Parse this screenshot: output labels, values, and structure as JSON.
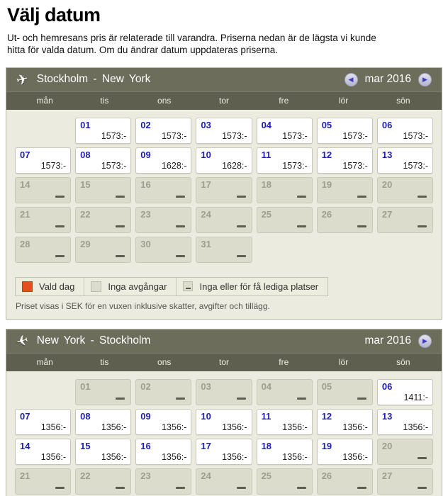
{
  "page": {
    "title": "Välj datum",
    "intro": "Ut- och hemresans pris är relaterade till varandra. Priserna nedan är de lägsta vi kunde hitta för valda datum. Om du ändrar datum uppdateras priserna."
  },
  "colors": {
    "header_bg": "#6d6d5c",
    "weekday_bg": "#5f5f50",
    "body_bg": "#ebebe0",
    "unavailable_bg": "#dcdccd",
    "available_bg": "#ffffff",
    "day_blue": "#1e1eb4",
    "selected_orange": "#e2501e",
    "arrow_blue": "#3d3dbb"
  },
  "icons": {
    "outbound_plane": "✈",
    "return_plane": "✈",
    "prev_arrow": "◀",
    "next_arrow": "▶"
  },
  "currency_note": "SEK",
  "weekday_headers": [
    "mån",
    "tis",
    "ons",
    "tor",
    "fre",
    "lör",
    "sön"
  ],
  "calendars": [
    {
      "id": "outbound",
      "route": "Stockholm - New York",
      "month_label": "mar 2016",
      "has_prev": true,
      "has_next": true,
      "weeks": [
        [
          null,
          {
            "day": "01",
            "state": "available",
            "price": "1573:-"
          },
          {
            "day": "02",
            "state": "available",
            "price": "1573:-"
          },
          {
            "day": "03",
            "state": "available",
            "price": "1573:-"
          },
          {
            "day": "04",
            "state": "available",
            "price": "1573:-"
          },
          {
            "day": "05",
            "state": "available",
            "price": "1573:-"
          },
          {
            "day": "06",
            "state": "available",
            "price": "1573:-"
          }
        ],
        [
          {
            "day": "07",
            "state": "available",
            "price": "1573:-"
          },
          {
            "day": "08",
            "state": "available",
            "price": "1573:-"
          },
          {
            "day": "09",
            "state": "available",
            "price": "1628:-"
          },
          {
            "day": "10",
            "state": "available",
            "price": "1628:-"
          },
          {
            "day": "11",
            "state": "available",
            "price": "1573:-"
          },
          {
            "day": "12",
            "state": "available",
            "price": "1573:-"
          },
          {
            "day": "13",
            "state": "available",
            "price": "1573:-"
          }
        ],
        [
          {
            "day": "14",
            "state": "unavailable"
          },
          {
            "day": "15",
            "state": "unavailable"
          },
          {
            "day": "16",
            "state": "unavailable"
          },
          {
            "day": "17",
            "state": "unavailable"
          },
          {
            "day": "18",
            "state": "unavailable"
          },
          {
            "day": "19",
            "state": "unavailable"
          },
          {
            "day": "20",
            "state": "unavailable"
          }
        ],
        [
          {
            "day": "21",
            "state": "unavailable"
          },
          {
            "day": "22",
            "state": "unavailable"
          },
          {
            "day": "23",
            "state": "unavailable"
          },
          {
            "day": "24",
            "state": "unavailable"
          },
          {
            "day": "25",
            "state": "unavailable"
          },
          {
            "day": "26",
            "state": "unavailable"
          },
          {
            "day": "27",
            "state": "unavailable"
          }
        ],
        [
          {
            "day": "28",
            "state": "unavailable"
          },
          {
            "day": "29",
            "state": "unavailable"
          },
          {
            "day": "30",
            "state": "unavailable"
          },
          {
            "day": "31",
            "state": "unavailable"
          },
          null,
          null,
          null
        ]
      ],
      "show_legend": true
    },
    {
      "id": "return",
      "route": "New York - Stockholm",
      "month_label": "mar 2016",
      "has_prev": false,
      "has_next": true,
      "weeks": [
        [
          null,
          {
            "day": "01",
            "state": "unavailable"
          },
          {
            "day": "02",
            "state": "unavailable"
          },
          {
            "day": "03",
            "state": "unavailable"
          },
          {
            "day": "04",
            "state": "unavailable"
          },
          {
            "day": "05",
            "state": "unavailable"
          },
          {
            "day": "06",
            "state": "available",
            "price": "1411:-"
          }
        ],
        [
          {
            "day": "07",
            "state": "available",
            "price": "1356:-"
          },
          {
            "day": "08",
            "state": "available",
            "price": "1356:-"
          },
          {
            "day": "09",
            "state": "available",
            "price": "1356:-"
          },
          {
            "day": "10",
            "state": "available",
            "price": "1356:-"
          },
          {
            "day": "11",
            "state": "available",
            "price": "1356:-"
          },
          {
            "day": "12",
            "state": "available",
            "price": "1356:-"
          },
          {
            "day": "13",
            "state": "available",
            "price": "1356:-"
          }
        ],
        [
          {
            "day": "14",
            "state": "available",
            "price": "1356:-"
          },
          {
            "day": "15",
            "state": "available",
            "price": "1356:-"
          },
          {
            "day": "16",
            "state": "available",
            "price": "1356:-"
          },
          {
            "day": "17",
            "state": "available",
            "price": "1356:-"
          },
          {
            "day": "18",
            "state": "available",
            "price": "1356:-"
          },
          {
            "day": "19",
            "state": "available",
            "price": "1356:-"
          },
          {
            "day": "20",
            "state": "unavailable"
          }
        ],
        [
          {
            "day": "21",
            "state": "unavailable"
          },
          {
            "day": "22",
            "state": "unavailable"
          },
          {
            "day": "23",
            "state": "unavailable"
          },
          {
            "day": "24",
            "state": "unavailable"
          },
          {
            "day": "25",
            "state": "unavailable"
          },
          {
            "day": "26",
            "state": "unavailable"
          },
          {
            "day": "27",
            "state": "unavailable"
          }
        ]
      ],
      "show_legend": false
    }
  ],
  "legend": {
    "items": [
      {
        "type": "selected",
        "label": "Vald dag"
      },
      {
        "type": "unavailable",
        "label": "Inga avgångar"
      },
      {
        "type": "dash",
        "label": "Inga eller för få lediga platser"
      }
    ],
    "note": "Priset visas i SEK för en vuxen inklusive skatter, avgifter och tillägg."
  }
}
